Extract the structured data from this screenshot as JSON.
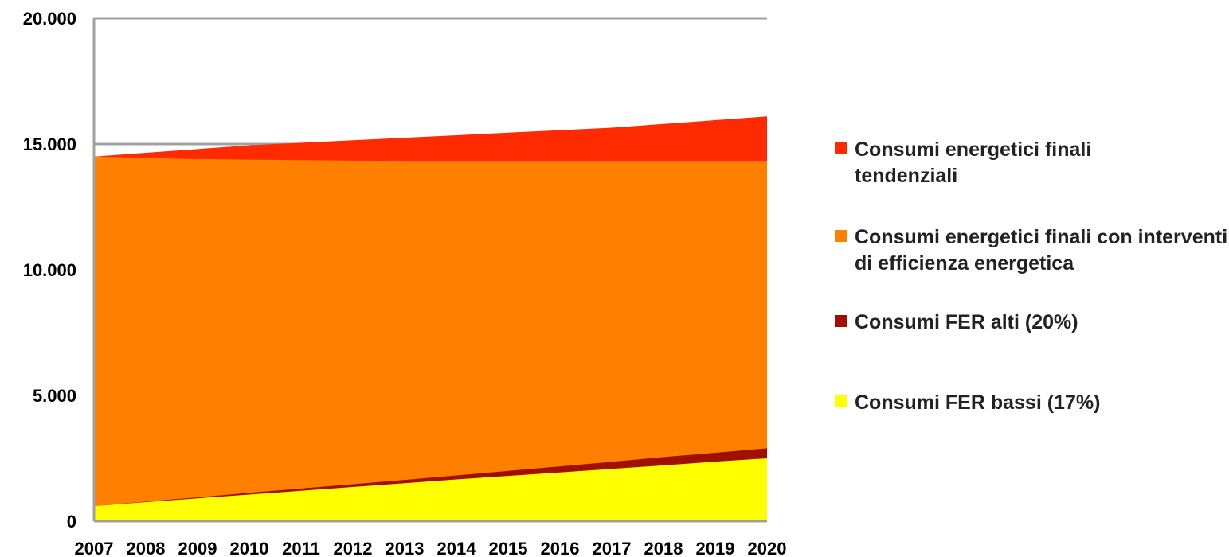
{
  "chart_data": {
    "type": "area",
    "stacked": false,
    "x": [
      "2007",
      "2008",
      "2009",
      "2010",
      "2011",
      "2012",
      "2013",
      "2014",
      "2015",
      "2016",
      "2017",
      "2018",
      "2019",
      "2020"
    ],
    "ylim": [
      0,
      20000
    ],
    "yticks": [
      0,
      5000,
      10000,
      15000,
      20000
    ],
    "ytick_labels": [
      "0",
      "5.000",
      "10.000",
      "15.000",
      "20.000"
    ],
    "grid": "horizontal",
    "legend_position": "right",
    "series": [
      {
        "name": "Consumi energetici finali tendenziali",
        "color": "#ff2a00",
        "values": [
          14500,
          14650,
          14800,
          14950,
          15050,
          15150,
          15250,
          15350,
          15450,
          15550,
          15650,
          15800,
          15950,
          16100
        ]
      },
      {
        "name": "Consumi energetici finali con interventi di efficienza energetica",
        "color": "#ff7f00",
        "values": [
          14500,
          14450,
          14400,
          14380,
          14360,
          14340,
          14330,
          14330,
          14330,
          14330,
          14330,
          14330,
          14330,
          14330
        ]
      },
      {
        "name": "Consumi FER alti (20%)",
        "color": "#a01000",
        "values": [
          600,
          780,
          950,
          1130,
          1300,
          1470,
          1640,
          1820,
          2000,
          2180,
          2360,
          2550,
          2720,
          2900
        ]
      },
      {
        "name": "Consumi FER bassi (17%)",
        "color": "#ffff00",
        "values": [
          600,
          760,
          910,
          1060,
          1210,
          1360,
          1510,
          1660,
          1800,
          1940,
          2080,
          2220,
          2370,
          2500
        ]
      }
    ]
  }
}
